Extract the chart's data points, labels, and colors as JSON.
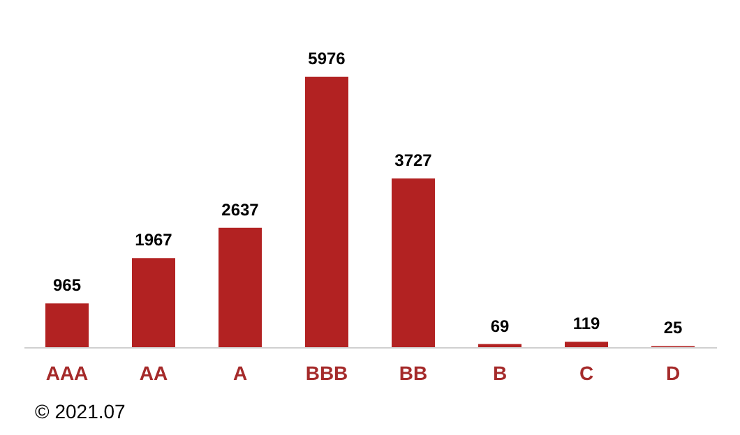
{
  "chart_data": {
    "type": "bar",
    "categories": [
      "AAA",
      "AA",
      "A",
      "BBB",
      "BB",
      "B",
      "C",
      "D"
    ],
    "values": [
      965,
      1967,
      2637,
      5976,
      3727,
      69,
      119,
      25
    ],
    "color": "#b22222",
    "data_labels": true,
    "annotations": [
      "© 2021.07"
    ]
  }
}
